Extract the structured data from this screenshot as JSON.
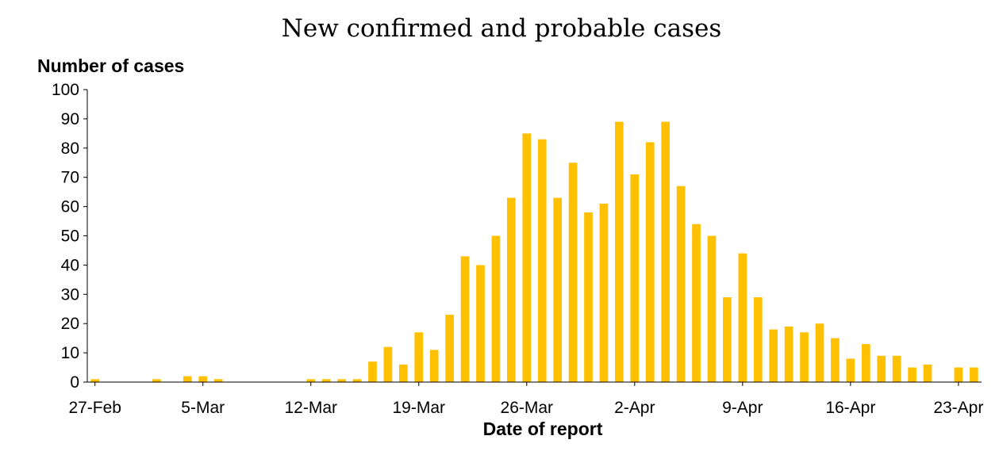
{
  "chart_data": {
    "type": "bar",
    "title": "New confirmed and probable cases",
    "ylabel": "Number of cases",
    "xlabel": "Date of report",
    "ylim": [
      0,
      100
    ],
    "yticks": [
      0,
      10,
      20,
      30,
      40,
      50,
      60,
      70,
      80,
      90,
      100
    ],
    "grid": false,
    "bar_color": "#FFC000",
    "categories": [
      "27-Feb",
      "28-Feb",
      "29-Feb",
      "1-Mar",
      "2-Mar",
      "3-Mar",
      "4-Mar",
      "5-Mar",
      "6-Mar",
      "7-Mar",
      "8-Mar",
      "9-Mar",
      "10-Mar",
      "11-Mar",
      "12-Mar",
      "13-Mar",
      "14-Mar",
      "15-Mar",
      "16-Mar",
      "17-Mar",
      "18-Mar",
      "19-Mar",
      "20-Mar",
      "21-Mar",
      "22-Mar",
      "23-Mar",
      "24-Mar",
      "25-Mar",
      "26-Mar",
      "27-Mar",
      "28-Mar",
      "29-Mar",
      "30-Mar",
      "31-Mar",
      "1-Apr",
      "2-Apr",
      "3-Apr",
      "4-Apr",
      "5-Apr",
      "6-Apr",
      "7-Apr",
      "8-Apr",
      "9-Apr",
      "10-Apr",
      "11-Apr",
      "12-Apr",
      "13-Apr",
      "14-Apr",
      "15-Apr",
      "16-Apr",
      "17-Apr",
      "18-Apr",
      "19-Apr",
      "20-Apr",
      "21-Apr",
      "22-Apr",
      "23-Apr",
      "24-Apr"
    ],
    "values": [
      1,
      0,
      0,
      0,
      1,
      0,
      2,
      2,
      1,
      0,
      0,
      0,
      0,
      0,
      1,
      1,
      1,
      1,
      7,
      12,
      6,
      17,
      11,
      23,
      43,
      40,
      50,
      63,
      85,
      83,
      63,
      75,
      58,
      61,
      89,
      71,
      82,
      89,
      67,
      54,
      50,
      29,
      44,
      29,
      18,
      19,
      17,
      20,
      15,
      8,
      13,
      9,
      9,
      5,
      6,
      0,
      5,
      5
    ],
    "x_tick_labels": [
      "27-Feb",
      "5-Mar",
      "12-Mar",
      "19-Mar",
      "26-Mar",
      "2-Apr",
      "9-Apr",
      "16-Apr",
      "23-Apr"
    ]
  }
}
